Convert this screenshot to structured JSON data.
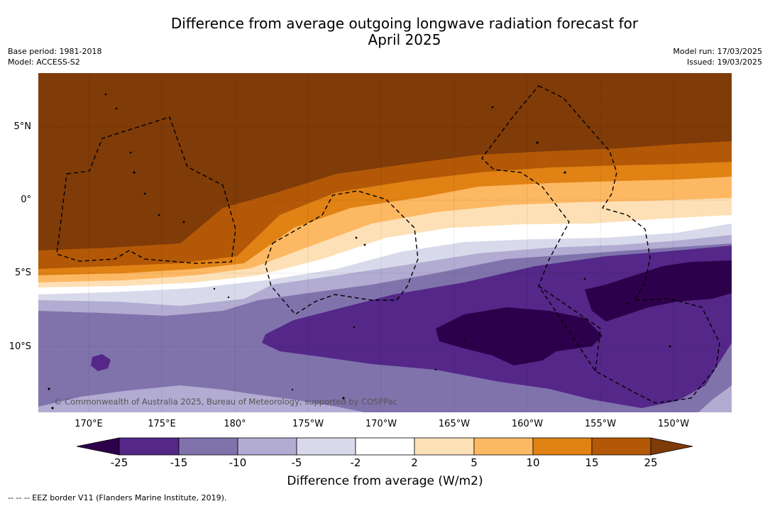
{
  "title": {
    "line1": "Difference from average outgoing longwave radiation forecast for",
    "line2": "April 2025"
  },
  "meta_left": {
    "base_period": "Base period: 1981-2018",
    "model": "Model: ACCESS-S2"
  },
  "meta_right": {
    "model_run": "Model run: 17/03/2025",
    "issued": "Issued: 19/03/2025"
  },
  "map": {
    "lat_labels": [
      "5°N",
      "0°",
      "5°S",
      "10°S"
    ],
    "lon_labels": [
      "170°E",
      "175°E",
      "180°",
      "175°W",
      "170°W",
      "165°W",
      "160°W",
      "155°W",
      "150°W"
    ],
    "copyright": "© Commonwealth of Australia 2025, Bureau of Meteorology, supported by COSPPac",
    "colors": {
      "b1": "#7f3b08",
      "b2": "#b35806",
      "b3": "#e08214",
      "b4": "#fdb863",
      "b5": "#fee0b6",
      "white": "#ffffff",
      "p1": "#d8daeb",
      "p2": "#b2abd2",
      "p3": "#8073ac",
      "p4": "#542788",
      "p5": "#2d004b"
    }
  },
  "colorbar": {
    "ticks": [
      "-25",
      "-15",
      "-10",
      "-5",
      "-2",
      "2",
      "5",
      "10",
      "15",
      "25"
    ],
    "label": "Difference from average (W/m2)",
    "colors": [
      "#2d004b",
      "#542788",
      "#8073ac",
      "#b2abd2",
      "#d8daeb",
      "#ffffff",
      "#fee0b6",
      "#fdb863",
      "#e08214",
      "#b35806",
      "#7f3b08"
    ]
  },
  "footnote": "-- -- -- EEZ border V11 (Flanders Marine Institute, 2019)."
}
